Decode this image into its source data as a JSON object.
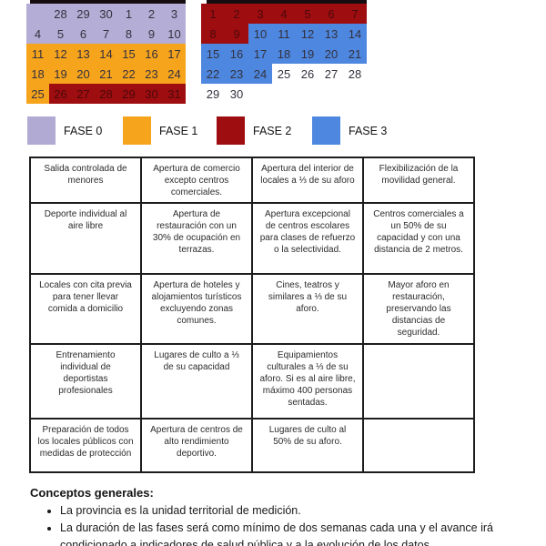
{
  "phase_colors": {
    "f0": "#b4add5",
    "f1": "#f7a41d",
    "f2": "#9e0d10",
    "f3": "#4e87df",
    "w": "#ffffff"
  },
  "calendars": {
    "left": {
      "weeks": [
        [
          {
            "d": "",
            "p": "f0"
          },
          {
            "d": "28",
            "p": "f0"
          },
          {
            "d": "29",
            "p": "f0"
          },
          {
            "d": "30",
            "p": "f0"
          },
          {
            "d": "1",
            "p": "f0"
          },
          {
            "d": "2",
            "p": "f0"
          },
          {
            "d": "3",
            "p": "f0"
          }
        ],
        [
          {
            "d": "4",
            "p": "f0"
          },
          {
            "d": "5",
            "p": "f0"
          },
          {
            "d": "6",
            "p": "f0"
          },
          {
            "d": "7",
            "p": "f0"
          },
          {
            "d": "8",
            "p": "f0"
          },
          {
            "d": "9",
            "p": "f0"
          },
          {
            "d": "10",
            "p": "f0"
          }
        ],
        [
          {
            "d": "11",
            "p": "f1"
          },
          {
            "d": "12",
            "p": "f1"
          },
          {
            "d": "13",
            "p": "f1"
          },
          {
            "d": "14",
            "p": "f1"
          },
          {
            "d": "15",
            "p": "f1"
          },
          {
            "d": "16",
            "p": "f1"
          },
          {
            "d": "17",
            "p": "f1"
          }
        ],
        [
          {
            "d": "18",
            "p": "f1"
          },
          {
            "d": "19",
            "p": "f1"
          },
          {
            "d": "20",
            "p": "f1"
          },
          {
            "d": "21",
            "p": "f1"
          },
          {
            "d": "22",
            "p": "f1"
          },
          {
            "d": "23",
            "p": "f1"
          },
          {
            "d": "24",
            "p": "f1"
          }
        ],
        [
          {
            "d": "25",
            "p": "f1"
          },
          {
            "d": "26",
            "p": "f2"
          },
          {
            "d": "27",
            "p": "f2"
          },
          {
            "d": "28",
            "p": "f2"
          },
          {
            "d": "29",
            "p": "f2"
          },
          {
            "d": "30",
            "p": "f2"
          },
          {
            "d": "31",
            "p": "f2"
          }
        ]
      ]
    },
    "right": {
      "weeks": [
        [
          {
            "d": "1",
            "p": "f2"
          },
          {
            "d": "2",
            "p": "f2"
          },
          {
            "d": "3",
            "p": "f2"
          },
          {
            "d": "4",
            "p": "f2"
          },
          {
            "d": "5",
            "p": "f2"
          },
          {
            "d": "6",
            "p": "f2"
          },
          {
            "d": "7",
            "p": "f2"
          }
        ],
        [
          {
            "d": "8",
            "p": "f2"
          },
          {
            "d": "9",
            "p": "f2"
          },
          {
            "d": "10",
            "p": "f3"
          },
          {
            "d": "11",
            "p": "f3"
          },
          {
            "d": "12",
            "p": "f3"
          },
          {
            "d": "13",
            "p": "f3"
          },
          {
            "d": "14",
            "p": "f3"
          }
        ],
        [
          {
            "d": "15",
            "p": "f3"
          },
          {
            "d": "16",
            "p": "f3"
          },
          {
            "d": "17",
            "p": "f3"
          },
          {
            "d": "18",
            "p": "f3"
          },
          {
            "d": "19",
            "p": "f3"
          },
          {
            "d": "20",
            "p": "f3"
          },
          {
            "d": "21",
            "p": "f3"
          }
        ],
        [
          {
            "d": "22",
            "p": "f3"
          },
          {
            "d": "23",
            "p": "f3"
          },
          {
            "d": "24",
            "p": "f3"
          },
          {
            "d": "25",
            "p": "w"
          },
          {
            "d": "26",
            "p": "w"
          },
          {
            "d": "27",
            "p": "w"
          },
          {
            "d": "28",
            "p": "w"
          }
        ],
        [
          {
            "d": "29",
            "p": "w"
          },
          {
            "d": "30",
            "p": "w"
          },
          {
            "d": "",
            "p": "w"
          },
          {
            "d": "",
            "p": "w"
          },
          {
            "d": "",
            "p": "w"
          },
          {
            "d": "",
            "p": "w"
          },
          {
            "d": "",
            "p": "w"
          }
        ]
      ]
    }
  },
  "legend": {
    "items": [
      {
        "label": "FASE 0",
        "color": "#b1aad3"
      },
      {
        "label": "FASE 1",
        "color": "#f7a41d"
      },
      {
        "label": "FASE 2",
        "color": "#9e0d10"
      },
      {
        "label": "FASE 3",
        "color": "#4e87df"
      }
    ]
  },
  "phase_table": {
    "rows": [
      [
        "Salida controlada de menores",
        "Apertura de comercio excepto centros comerciales.",
        "Apertura del interior de locales a ⅓ de su aforo",
        "Flexibilización de la movilidad general."
      ],
      [
        "Deporte individual al aire libre",
        "Apertura de restauración con un 30% de ocupación en terrazas.",
        "Apertura excepcional de centros escolares para clases de refuerzo o la selectividad.",
        "Centros comerciales a un 50% de su capacidad y con una distancia de 2 metros."
      ],
      [
        "Locales con cita previa para tener llevar comida a domicilio",
        "Apertura de hoteles y alojamientos turísticos excluyendo zonas comunes.",
        "Cines, teatros y similares a ⅓ de su aforo.",
        "Mayor aforo en restauración, preservando las distancias de seguridad."
      ],
      [
        "Entrenamiento individual de deportistas profesionales",
        "Lugares de culto a ⅓ de su capacidad",
        "Equipamientos culturales a ⅓ de su aforo. Si es al aire libre, máximo 400 personas sentadas.",
        ""
      ],
      [
        "Preparación de todos los locales públicos con medidas de protección",
        "Apertura de centros de alto rendimiento deportivo.",
        "Lugares de culto al 50% de su aforo.",
        ""
      ]
    ]
  },
  "footer": {
    "heading": "Conceptos generales:",
    "bullets": [
      "La provincia es la unidad territorial de medición.",
      "La duración de las fases será como mínimo de dos semanas cada una y el avance irá condicionado a indicadores de salud pública y a la evolución de los datos."
    ]
  }
}
